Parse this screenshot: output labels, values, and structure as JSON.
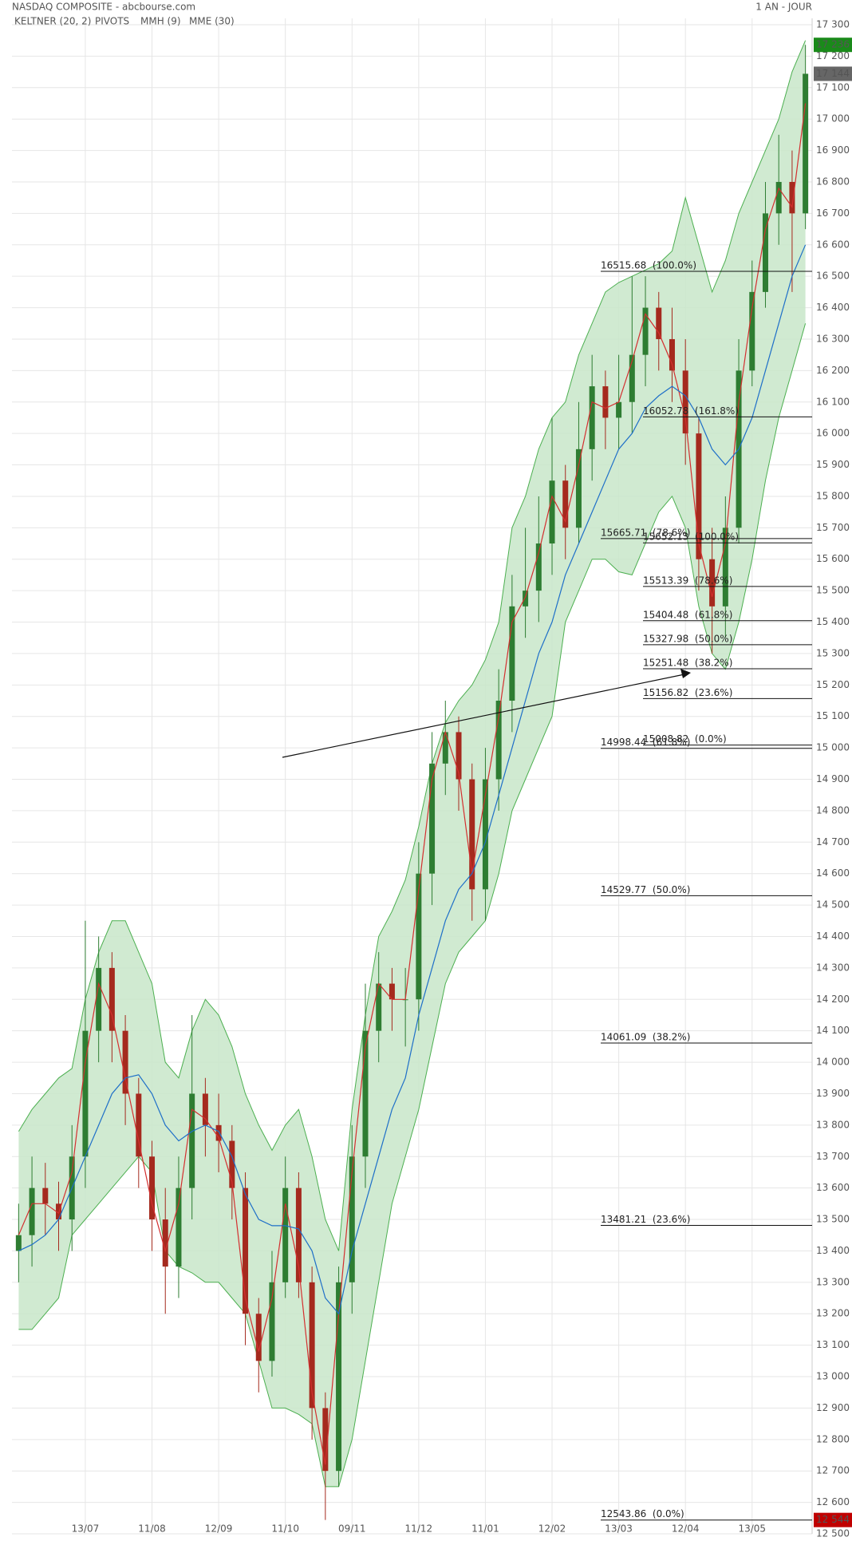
{
  "chart_data": {
    "type": "candlestick",
    "title": "NASDAQ COMPOSITE - abcbourse.com",
    "period": "1 AN - JOUR",
    "categories": [
      null,
      null,
      null,
      null,
      null,
      "13/07",
      null,
      null,
      null,
      null,
      "11/08",
      null,
      null,
      null,
      null,
      "12/09",
      null,
      null,
      null,
      null,
      "11/10",
      null,
      null,
      null,
      null,
      "09/11",
      null,
      null,
      null,
      null,
      "11/12",
      null,
      null,
      null,
      null,
      "11/01",
      null,
      null,
      null,
      null,
      "12/02",
      null,
      null,
      null,
      null,
      "13/03",
      null,
      null,
      null,
      null,
      "12/04",
      null,
      null,
      null,
      null,
      "13/05",
      null,
      null,
      null,
      null
    ],
    "open": [
      13400,
      13450,
      13600,
      13550,
      13500,
      13700,
      14100,
      14300,
      14100,
      13900,
      13700,
      13500,
      13350,
      13600,
      13900,
      13800,
      13750,
      13600,
      13200,
      13050,
      13300,
      13600,
      13300,
      12900,
      12700,
      13300,
      13700,
      14100,
      14250,
      14200,
      14200,
      14600,
      14950,
      15050,
      14900,
      14550,
      14900,
      15150,
      15450,
      15500,
      15650,
      15850,
      15700,
      15950,
      16150,
      16050,
      16100,
      16250,
      16400,
      16300,
      16200,
      16000,
      15600,
      15450,
      15700,
      16200,
      16450,
      16700,
      16800,
      16700
    ],
    "high": [
      13550,
      13700,
      13680,
      13620,
      13800,
      14450,
      14400,
      14350,
      14150,
      13950,
      13750,
      13600,
      13700,
      14150,
      13950,
      13900,
      13800,
      13650,
      13250,
      13400,
      13700,
      13650,
      13350,
      12950,
      13350,
      13800,
      14250,
      14350,
      14300,
      14300,
      14700,
      15050,
      15150,
      15100,
      14950,
      15000,
      15250,
      15550,
      15700,
      15800,
      16050,
      15900,
      16100,
      16250,
      16200,
      16250,
      16500,
      16500,
      16450,
      16400,
      16300,
      16050,
      15700,
      15800,
      16300,
      16550,
      16800,
      16950,
      16900,
      17236
    ],
    "low": [
      13300,
      13350,
      13450,
      13400,
      13400,
      13600,
      14000,
      14000,
      13800,
      13600,
      13400,
      13200,
      13250,
      13500,
      13700,
      13650,
      13500,
      13100,
      12950,
      13000,
      13250,
      13250,
      12800,
      12544,
      12650,
      13200,
      13600,
      14000,
      14100,
      14050,
      14100,
      14500,
      14850,
      14800,
      14450,
      14450,
      14800,
      15050,
      15350,
      15400,
      15550,
      15600,
      15650,
      15850,
      15950,
      15950,
      16000,
      16150,
      16200,
      16100,
      15900,
      15500,
      15300,
      15350,
      15650,
      16150,
      16400,
      16600,
      16450,
      16650
    ],
    "close": [
      13450,
      13600,
      13550,
      13500,
      13700,
      14100,
      14300,
      14100,
      13900,
      13700,
      13500,
      13350,
      13600,
      13900,
      13800,
      13750,
      13600,
      13200,
      13050,
      13300,
      13600,
      13300,
      12900,
      12700,
      13300,
      13700,
      14100,
      14250,
      14200,
      14200,
      14600,
      14950,
      15050,
      14900,
      14550,
      14900,
      15150,
      15450,
      15500,
      15650,
      15850,
      15700,
      15950,
      16150,
      16050,
      16100,
      16250,
      16400,
      16300,
      16200,
      16000,
      15600,
      15450,
      15700,
      16200,
      16450,
      16700,
      16800,
      16700,
      17144
    ],
    "up_color": "#2e7d32",
    "down_color": "#a52a1e",
    "overlays": [
      {
        "name": "KELTNER (20, 2)",
        "color": "#4caf50",
        "fill": "#c8e6c9",
        "upper": [
          13780,
          13850,
          13900,
          13950,
          13980,
          14200,
          14350,
          14450,
          14450,
          14350,
          14250,
          14000,
          13950,
          14100,
          14200,
          14150,
          14050,
          13900,
          13800,
          13720,
          13800,
          13850,
          13700,
          13500,
          13400,
          13850,
          14150,
          14400,
          14480,
          14580,
          14750,
          14950,
          15080,
          15150,
          15200,
          15280,
          15400,
          15700,
          15800,
          15950,
          16050,
          16100,
          16250,
          16350,
          16450,
          16480,
          16500,
          16520,
          16540,
          16580,
          16750,
          16600,
          16450,
          16550,
          16700,
          16800,
          16900,
          17000,
          17150,
          17250
        ],
        "lower": [
          13150,
          13150,
          13200,
          13250,
          13450,
          13500,
          13550,
          13600,
          13650,
          13700,
          13650,
          13400,
          13350,
          13330,
          13300,
          13300,
          13250,
          13200,
          13050,
          12900,
          12900,
          12880,
          12850,
          12650,
          12650,
          12800,
          13050,
          13300,
          13550,
          13700,
          13850,
          14050,
          14250,
          14350,
          14400,
          14450,
          14600,
          14800,
          14900,
          15000,
          15100,
          15400,
          15500,
          15600,
          15600,
          15560,
          15550,
          15650,
          15750,
          15800,
          15700,
          15450,
          15300,
          15250,
          15400,
          15600,
          15850,
          16050,
          16200,
          16350
        ]
      },
      {
        "name": "PIVOTS",
        "color": "#666666"
      },
      {
        "name": "MMH (9)",
        "color": "#d32f2f",
        "values": [
          13450,
          13550,
          13550,
          13520,
          13650,
          14000,
          14250,
          14150,
          13950,
          13750,
          13550,
          13400,
          13550,
          13850,
          13820,
          13760,
          13620,
          13250,
          13080,
          13250,
          13550,
          13350,
          12950,
          12720,
          13200,
          13650,
          14050,
          14250,
          14200,
          14200,
          14550,
          14900,
          15050,
          14920,
          14600,
          14850,
          15100,
          15400,
          15480,
          15620,
          15800,
          15720,
          15900,
          16100,
          16080,
          16100,
          16230,
          16380,
          16320,
          16220,
          16050,
          15650,
          15480,
          15650,
          16100,
          16400,
          16650,
          16780,
          16720,
          17050
        ]
      },
      {
        "name": "MME (30)",
        "color": "#1e6fc8",
        "values": [
          13400,
          13420,
          13450,
          13500,
          13600,
          13700,
          13800,
          13900,
          13950,
          13960,
          13900,
          13800,
          13750,
          13780,
          13800,
          13780,
          13700,
          13580,
          13500,
          13480,
          13480,
          13470,
          13400,
          13250,
          13200,
          13400,
          13550,
          13700,
          13850,
          13950,
          14150,
          14300,
          14450,
          14550,
          14600,
          14700,
          14850,
          15000,
          15150,
          15300,
          15400,
          15550,
          15650,
          15750,
          15850,
          15950,
          16000,
          16080,
          16120,
          16150,
          16120,
          16050,
          15950,
          15900,
          15950,
          16050,
          16200,
          16350,
          16500,
          16600
        ]
      }
    ],
    "fibonacci": [
      {
        "value": 16515.68,
        "label": "16515.68  (100.0%)"
      },
      {
        "value": 16052.78,
        "label": "16052.78  (161.8%)"
      },
      {
        "value": 15665.71,
        "label": "15665.71  (78.6%)"
      },
      {
        "value": 15652.13,
        "label": "15652.13  (100.0%)"
      },
      {
        "value": 15513.39,
        "label": "15513.39  (78.6%)"
      },
      {
        "value": 15404.48,
        "label": "15404.48  (61.8%)"
      },
      {
        "value": 15327.98,
        "label": "15327.98  (50.0%)"
      },
      {
        "value": 15251.48,
        "label": "15251.48  (38.2%)"
      },
      {
        "value": 15156.82,
        "label": "15156.82  (23.6%)"
      },
      {
        "value": 14998.44,
        "label": "14998.44  (61.8%)"
      },
      {
        "value": 15008.82,
        "label": "15008.82  (0.0%)"
      },
      {
        "value": 14529.77,
        "label": "14529.77  (50.0%)"
      },
      {
        "value": 14061.09,
        "label": "14061.09  (38.2%)"
      },
      {
        "value": 13481.21,
        "label": "13481.21  (23.6%)"
      },
      {
        "value": 12543.86,
        "label": "12543.86  (0.0%)"
      }
    ],
    "price_tags": [
      {
        "value": 17236,
        "label": "17 236",
        "color": "#1a8a1a"
      },
      {
        "value": 17144,
        "label": "17 144",
        "color": "#666666"
      },
      {
        "value": 12544,
        "label": "12 544",
        "color": "#c00000"
      }
    ],
    "ylim": [
      12500,
      17300
    ],
    "yticks": [
      {
        "value": 12500,
        "label": "12 500"
      },
      {
        "value": 12600,
        "label": "12 600"
      },
      {
        "value": 12700,
        "label": "12 700"
      },
      {
        "value": 12800,
        "label": "12 800"
      },
      {
        "value": 12900,
        "label": "12 900"
      },
      {
        "value": 13000,
        "label": "13 000"
      },
      {
        "value": 13100,
        "label": "13 100"
      },
      {
        "value": 13200,
        "label": "13 200"
      },
      {
        "value": 13300,
        "label": "13 300"
      },
      {
        "value": 13400,
        "label": "13 400"
      },
      {
        "value": 13500,
        "label": "13 500"
      },
      {
        "value": 13600,
        "label": "13 600"
      },
      {
        "value": 13700,
        "label": "13 700"
      },
      {
        "value": 13800,
        "label": "13 800"
      },
      {
        "value": 13900,
        "label": "13 900"
      },
      {
        "value": 14000,
        "label": "14 000"
      },
      {
        "value": 14100,
        "label": "14 100"
      },
      {
        "value": 14200,
        "label": "14 200"
      },
      {
        "value": 14300,
        "label": "14 300"
      },
      {
        "value": 14400,
        "label": "14 400"
      },
      {
        "value": 14500,
        "label": "14 500"
      },
      {
        "value": 14600,
        "label": "14 600"
      },
      {
        "value": 14700,
        "label": "14 700"
      },
      {
        "value": 14800,
        "label": "14 800"
      },
      {
        "value": 14900,
        "label": "14 900"
      },
      {
        "value": 15000,
        "label": "15 000"
      },
      {
        "value": 15100,
        "label": "15 100"
      },
      {
        "value": 15200,
        "label": "15 200"
      },
      {
        "value": 15300,
        "label": "15 300"
      },
      {
        "value": 15400,
        "label": "15 400"
      },
      {
        "value": 15500,
        "label": "15 500"
      },
      {
        "value": 15600,
        "label": "15 600"
      },
      {
        "value": 15700,
        "label": "15 700"
      },
      {
        "value": 15800,
        "label": "15 800"
      },
      {
        "value": 15900,
        "label": "15 900"
      },
      {
        "value": 16000,
        "label": "16 000"
      },
      {
        "value": 16100,
        "label": "16 100"
      },
      {
        "value": 16200,
        "label": "16 200"
      },
      {
        "value": 16300,
        "label": "16 300"
      },
      {
        "value": 16400,
        "label": "16 400"
      },
      {
        "value": 16500,
        "label": "16 500"
      },
      {
        "value": 16600,
        "label": "16 600"
      },
      {
        "value": 16700,
        "label": "16 700"
      },
      {
        "value": 16800,
        "label": "16 800"
      },
      {
        "value": 16900,
        "label": "16 900"
      },
      {
        "value": 17000,
        "label": "17 000"
      },
      {
        "value": 17100,
        "label": "17 100"
      },
      {
        "value": 17200,
        "label": "17 200"
      },
      {
        "value": 17300,
        "label": "17 300"
      }
    ],
    "grid": true
  }
}
